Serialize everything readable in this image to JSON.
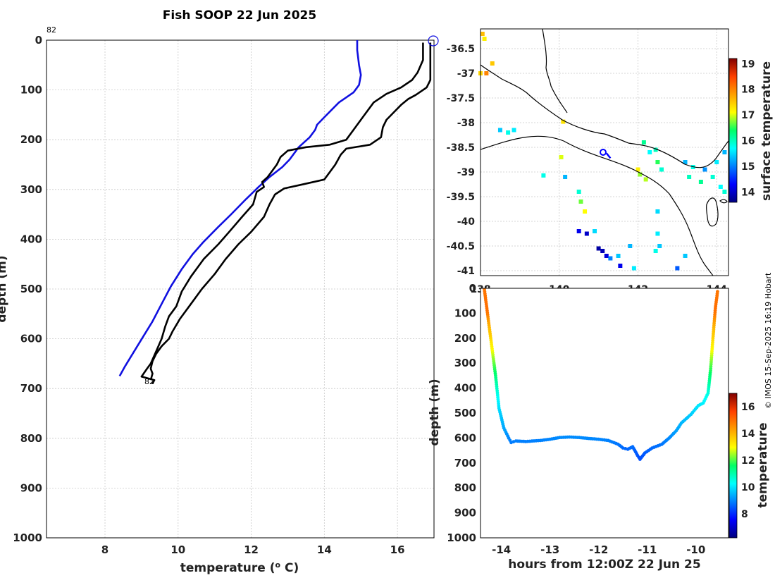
{
  "chart_data": [
    {
      "type": "line",
      "title": "Fish SOOP 22 Jun 2025",
      "xlabel": "temperature (o C)",
      "xlabel_main": "temperature (",
      "xlabel_sup": "o",
      "xlabel_end": " C)",
      "ylabel": "depth (m)",
      "xlim": [
        6.4,
        17
      ],
      "ylim": [
        0,
        1000
      ],
      "xticks": [
        8,
        10,
        12,
        14,
        16
      ],
      "yticks": [
        0,
        100,
        200,
        300,
        400,
        500,
        600,
        700,
        800,
        900,
        1000
      ],
      "annotations": [
        {
          "text": "82",
          "x": 6.4,
          "y": -22
        },
        {
          "text": "82",
          "x": 9.0,
          "y": 695
        }
      ],
      "series": [
        {
          "name": "profile",
          "color": "#1010e0",
          "points": [
            [
              14.9,
              0
            ],
            [
              14.9,
              20
            ],
            [
              14.95,
              50
            ],
            [
              15.0,
              70
            ],
            [
              14.95,
              90
            ],
            [
              14.8,
              105
            ],
            [
              14.6,
              115
            ],
            [
              14.4,
              125
            ],
            [
              14.2,
              140
            ],
            [
              14.0,
              155
            ],
            [
              13.8,
              170
            ],
            [
              13.75,
              180
            ],
            [
              13.6,
              195
            ],
            [
              13.3,
              215
            ],
            [
              13.05,
              240
            ],
            [
              12.85,
              255
            ],
            [
              12.5,
              275
            ],
            [
              12.2,
              295
            ],
            [
              11.85,
              320
            ],
            [
              11.45,
              350
            ],
            [
              11.1,
              375
            ],
            [
              10.7,
              405
            ],
            [
              10.4,
              430
            ],
            [
              10.1,
              460
            ],
            [
              9.8,
              495
            ],
            [
              9.55,
              530
            ],
            [
              9.3,
              565
            ],
            [
              9.05,
              595
            ],
            [
              8.8,
              625
            ],
            [
              8.55,
              655
            ],
            [
              8.4,
              675
            ]
          ]
        },
        {
          "name": "climatology-min",
          "color": "#000000",
          "points": [
            [
              16.7,
              5
            ],
            [
              16.7,
              40
            ],
            [
              16.55,
              65
            ],
            [
              16.4,
              80
            ],
            [
              16.1,
              95
            ],
            [
              15.7,
              108
            ],
            [
              15.35,
              125
            ],
            [
              15.1,
              150
            ],
            [
              14.85,
              175
            ],
            [
              14.6,
              200
            ],
            [
              14.15,
              210
            ],
            [
              13.5,
              215
            ],
            [
              13.0,
              222
            ],
            [
              12.8,
              235
            ],
            [
              12.7,
              250
            ],
            [
              12.55,
              265
            ],
            [
              12.45,
              275
            ],
            [
              12.3,
              285
            ],
            [
              12.35,
              295
            ],
            [
              12.15,
              305
            ],
            [
              12.05,
              330
            ],
            [
              11.75,
              355
            ],
            [
              11.4,
              385
            ],
            [
              11.1,
              410
            ],
            [
              10.7,
              440
            ],
            [
              10.35,
              475
            ],
            [
              10.1,
              505
            ],
            [
              9.95,
              535
            ],
            [
              9.75,
              555
            ],
            [
              9.65,
              575
            ],
            [
              9.55,
              600
            ],
            [
              9.4,
              625
            ],
            [
              9.25,
              650
            ],
            [
              9.15,
              660
            ],
            [
              9.0,
              676
            ],
            [
              9.35,
              683
            ],
            [
              9.3,
              690
            ]
          ]
        },
        {
          "name": "climatology-max",
          "color": "#000000",
          "points": [
            [
              16.9,
              5
            ],
            [
              16.9,
              80
            ],
            [
              16.8,
              95
            ],
            [
              16.5,
              110
            ],
            [
              16.3,
              118
            ],
            [
              16.1,
              130
            ],
            [
              15.9,
              145
            ],
            [
              15.7,
              160
            ],
            [
              15.6,
              175
            ],
            [
              15.55,
              195
            ],
            [
              15.25,
              210
            ],
            [
              14.6,
              218
            ],
            [
              14.45,
              230
            ],
            [
              14.3,
              250
            ],
            [
              14.15,
              265
            ],
            [
              14.0,
              280
            ],
            [
              13.4,
              290
            ],
            [
              12.9,
              298
            ],
            [
              12.65,
              310
            ],
            [
              12.5,
              330
            ],
            [
              12.35,
              355
            ],
            [
              12.0,
              385
            ],
            [
              11.65,
              410
            ],
            [
              11.3,
              440
            ],
            [
              11.0,
              470
            ],
            [
              10.65,
              500
            ],
            [
              10.35,
              530
            ],
            [
              10.05,
              560
            ],
            [
              9.85,
              585
            ],
            [
              9.75,
              600
            ],
            [
              9.55,
              615
            ],
            [
              9.4,
              630
            ],
            [
              9.3,
              645
            ],
            [
              9.25,
              660
            ],
            [
              9.3,
              670
            ],
            [
              9.25,
              683
            ]
          ]
        }
      ]
    },
    {
      "type": "scatter",
      "title": "",
      "xlabel": "",
      "ylabel": "",
      "xlim": [
        138,
        144.3
      ],
      "ylim": [
        -41.1,
        -36.1
      ],
      "xticks": [
        138,
        140,
        142,
        144
      ],
      "xtick_labels": [
        "138",
        "140",
        "142",
        "144"
      ],
      "yticks": [
        -36.5,
        -37,
        -37.5,
        -38,
        -38.5,
        -39,
        -39.5,
        -40,
        -40.5,
        -41
      ],
      "ytick_labels": [
        "-36.5",
        "-37",
        "-37.5",
        "-38",
        "-38.5",
        "-39",
        "-39.5",
        "-40",
        "-40.5",
        "-41"
      ],
      "colorbar": {
        "label": "surface temperature",
        "range": [
          13.6,
          19.2
        ],
        "ticks": [
          14,
          15,
          16,
          17,
          18,
          19
        ]
      },
      "track": [
        [
          141.2,
          -38.62
        ],
        [
          141.3,
          -38.72
        ]
      ],
      "pixels": [
        {
          "lon": 138.05,
          "lat": -36.2,
          "t": 17.6
        },
        {
          "lon": 138.1,
          "lat": -36.3,
          "t": 17.2
        },
        {
          "lon": 138.3,
          "lat": -36.8,
          "t": 17.5
        },
        {
          "lon": 138.15,
          "lat": -37.0,
          "t": 18.0
        },
        {
          "lon": 138.0,
          "lat": -37.0,
          "t": 17.4
        },
        {
          "lon": 138.5,
          "lat": -38.15,
          "t": 15.4
        },
        {
          "lon": 138.7,
          "lat": -38.2,
          "t": 15.8
        },
        {
          "lon": 138.85,
          "lat": -38.15,
          "t": 15.6
        },
        {
          "lon": 140.1,
          "lat": -37.98,
          "t": 17.3
        },
        {
          "lon": 140.05,
          "lat": -38.7,
          "t": 17.0
        },
        {
          "lon": 139.6,
          "lat": -39.07,
          "t": 15.8
        },
        {
          "lon": 140.15,
          "lat": -39.1,
          "t": 15.3
        },
        {
          "lon": 140.5,
          "lat": -39.4,
          "t": 15.9
        },
        {
          "lon": 140.55,
          "lat": -39.6,
          "t": 16.7
        },
        {
          "lon": 140.65,
          "lat": -39.8,
          "t": 17.1
        },
        {
          "lon": 140.5,
          "lat": -40.2,
          "t": 14.2
        },
        {
          "lon": 140.7,
          "lat": -40.25,
          "t": 14.0
        },
        {
          "lon": 140.9,
          "lat": -40.2,
          "t": 15.5
        },
        {
          "lon": 141.0,
          "lat": -40.55,
          "t": 13.8
        },
        {
          "lon": 141.1,
          "lat": -40.6,
          "t": 13.9
        },
        {
          "lon": 141.2,
          "lat": -40.7,
          "t": 14.1
        },
        {
          "lon": 141.3,
          "lat": -40.75,
          "t": 15.0
        },
        {
          "lon": 141.5,
          "lat": -40.7,
          "t": 15.4
        },
        {
          "lon": 141.55,
          "lat": -40.9,
          "t": 14.2
        },
        {
          "lon": 141.8,
          "lat": -40.5,
          "t": 15.3
        },
        {
          "lon": 141.9,
          "lat": -40.95,
          "t": 15.6
        },
        {
          "lon": 142.0,
          "lat": -38.95,
          "t": 17.2
        },
        {
          "lon": 142.05,
          "lat": -39.05,
          "t": 16.8
        },
        {
          "lon": 142.2,
          "lat": -39.15,
          "t": 16.9
        },
        {
          "lon": 142.15,
          "lat": -38.4,
          "t": 16.2
        },
        {
          "lon": 142.3,
          "lat": -38.6,
          "t": 15.7
        },
        {
          "lon": 142.45,
          "lat": -38.55,
          "t": 16.0
        },
        {
          "lon": 142.5,
          "lat": -38.8,
          "t": 16.5
        },
        {
          "lon": 142.6,
          "lat": -38.95,
          "t": 15.9
        },
        {
          "lon": 142.5,
          "lat": -40.25,
          "t": 15.6
        },
        {
          "lon": 142.55,
          "lat": -40.5,
          "t": 15.4
        },
        {
          "lon": 142.45,
          "lat": -40.6,
          "t": 15.8
        },
        {
          "lon": 142.5,
          "lat": -39.8,
          "t": 15.5
        },
        {
          "lon": 143.2,
          "lat": -38.8,
          "t": 15.3
        },
        {
          "lon": 143.4,
          "lat": -38.9,
          "t": 15.8
        },
        {
          "lon": 143.7,
          "lat": -38.95,
          "t": 15.1
        },
        {
          "lon": 144.0,
          "lat": -38.8,
          "t": 15.6
        },
        {
          "lon": 144.2,
          "lat": -38.6,
          "t": 15.3
        },
        {
          "lon": 143.3,
          "lat": -39.1,
          "t": 16.0
        },
        {
          "lon": 143.6,
          "lat": -39.2,
          "t": 16.2
        },
        {
          "lon": 143.9,
          "lat": -39.1,
          "t": 15.9
        },
        {
          "lon": 144.1,
          "lat": -39.3,
          "t": 15.7
        },
        {
          "lon": 144.2,
          "lat": -39.4,
          "t": 15.9
        },
        {
          "lon": 143.0,
          "lat": -40.95,
          "t": 14.8
        },
        {
          "lon": 143.2,
          "lat": -40.7,
          "t": 15.4
        }
      ]
    },
    {
      "type": "scatter",
      "title": "",
      "xlabel": "hours from 12:00Z 22 Jun 25",
      "ylabel": "depth (m)",
      "xlim": [
        -14.43,
        -9.33
      ],
      "ylim": [
        0,
        1000
      ],
      "xticks": [
        -14,
        -13,
        -12,
        -11,
        -10
      ],
      "xtick_labels": [
        "-14",
        "-13",
        "-12",
        "-11",
        "-10"
      ],
      "yticks": [
        0,
        100,
        200,
        300,
        400,
        500,
        600,
        700,
        800,
        900,
        1000
      ],
      "ytick_labels": [
        "0",
        "100",
        "200",
        "300",
        "400",
        "500",
        "600",
        "700",
        "800",
        "900",
        "1000"
      ],
      "colorbar": {
        "label": "temperature",
        "range": [
          6.2,
          17.0
        ],
        "ticks": [
          8,
          10,
          12,
          14,
          16
        ]
      },
      "dive": [
        [
          -14.35,
          5
        ],
        [
          -14.3,
          80
        ],
        [
          -14.22,
          200
        ],
        [
          -14.12,
          350
        ],
        [
          -14.05,
          480
        ],
        [
          -13.95,
          560
        ],
        [
          -13.85,
          600
        ],
        [
          -13.8,
          618
        ],
        [
          -13.7,
          612
        ],
        [
          -13.5,
          614
        ],
        [
          -13.2,
          610
        ],
        [
          -13.0,
          605
        ],
        [
          -12.8,
          598
        ],
        [
          -12.6,
          596
        ],
        [
          -12.4,
          598
        ],
        [
          -12.2,
          602
        ],
        [
          -12.0,
          605
        ],
        [
          -11.8,
          610
        ],
        [
          -11.6,
          625
        ],
        [
          -11.5,
          640
        ],
        [
          -11.4,
          645
        ],
        [
          -11.3,
          635
        ],
        [
          -11.2,
          670
        ],
        [
          -11.15,
          685
        ],
        [
          -11.05,
          660
        ],
        [
          -10.9,
          640
        ],
        [
          -10.7,
          625
        ],
        [
          -10.55,
          600
        ],
        [
          -10.4,
          570
        ],
        [
          -10.3,
          540
        ],
        [
          -10.1,
          505
        ],
        [
          -9.95,
          470
        ],
        [
          -9.85,
          460
        ],
        [
          -9.75,
          420
        ],
        [
          -9.7,
          330
        ],
        [
          -9.65,
          200
        ],
        [
          -9.6,
          80
        ],
        [
          -9.55,
          5
        ]
      ]
    }
  ],
  "credit": "© IMOS 15-Sep-2025 16:19 Hobart",
  "titles": {
    "map_colorbar": "surface temperature",
    "section_colorbar": "temperature",
    "depth_label": "depth (m)",
    "xlabel_section": "hours from 12:00Z 22 Jun 25"
  }
}
